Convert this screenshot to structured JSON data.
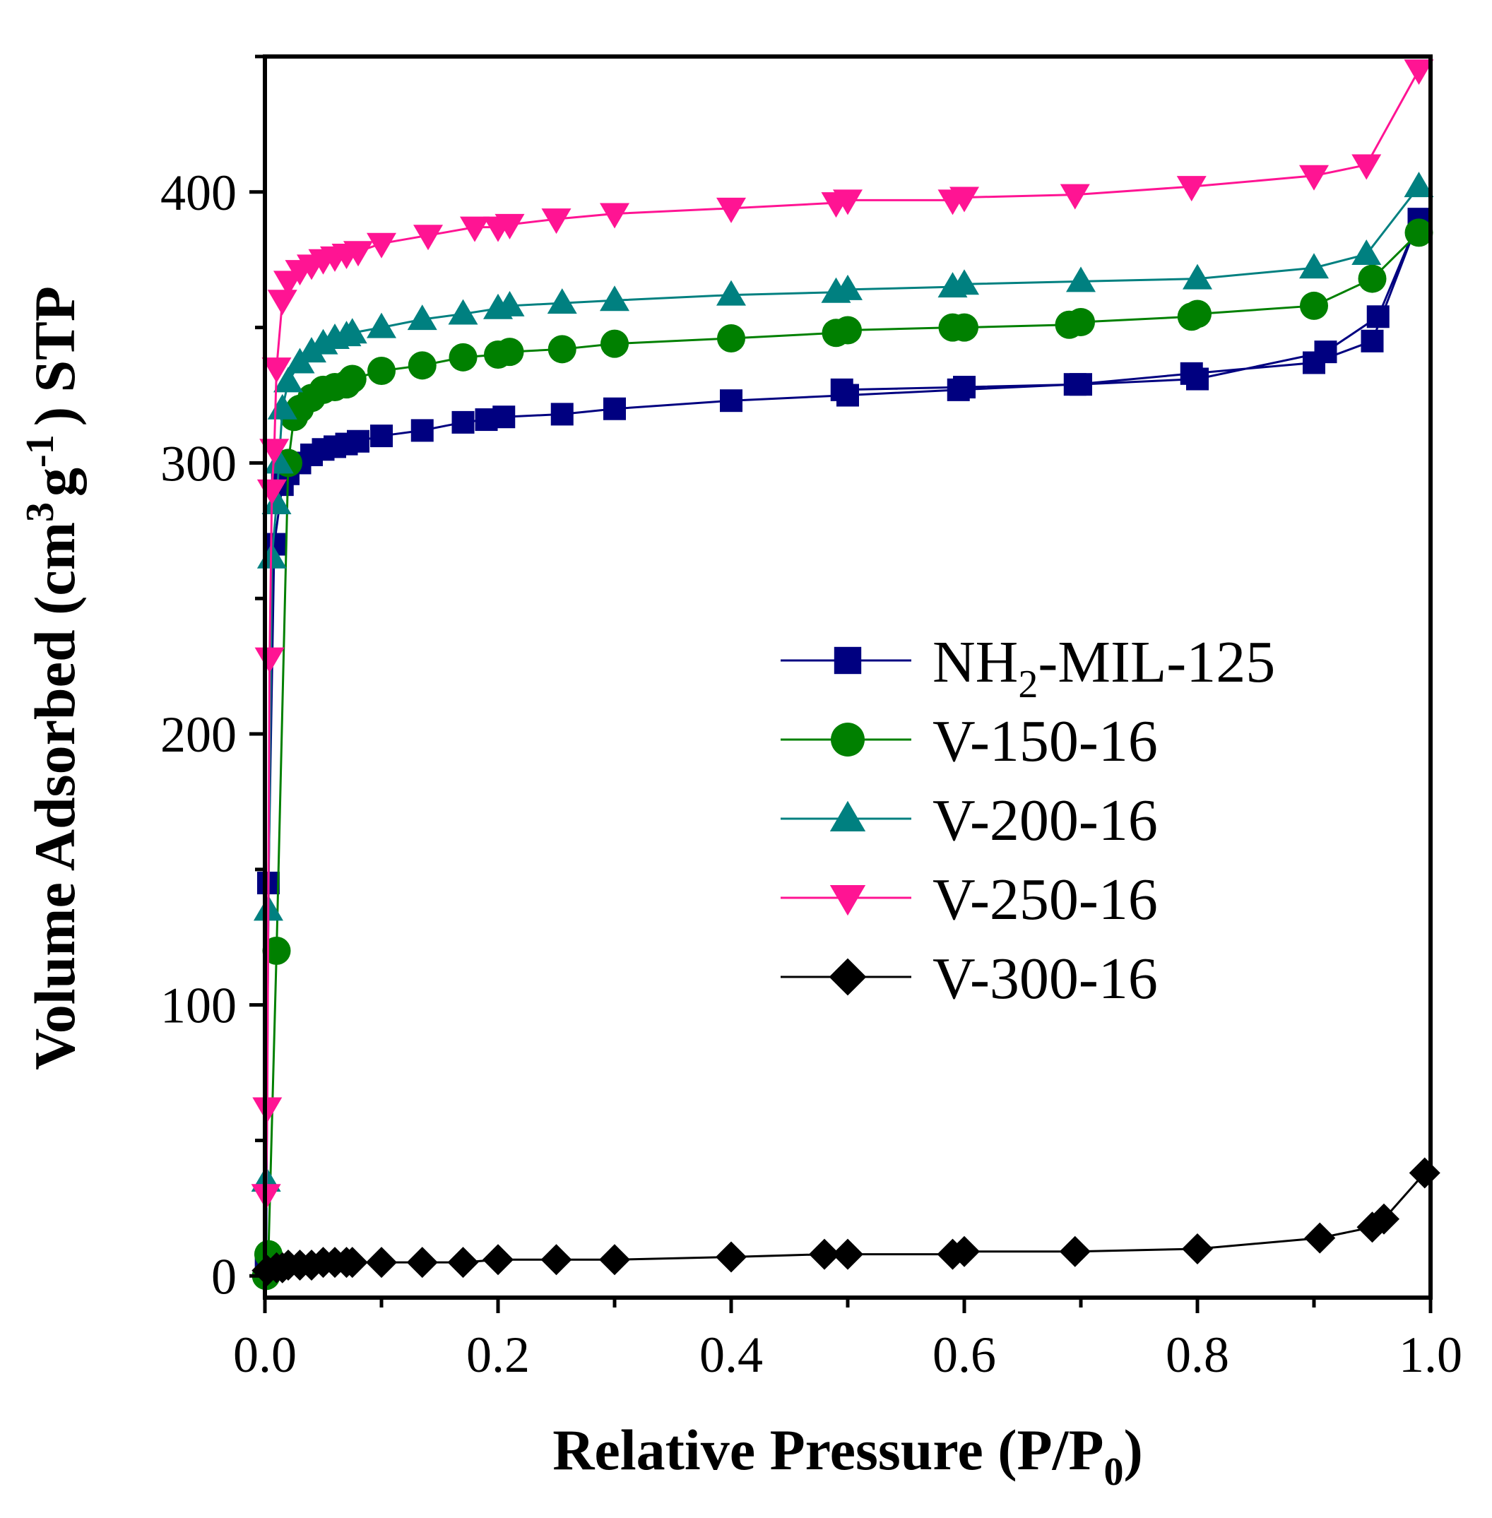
{
  "chart_data": {
    "type": "line",
    "xlabel": "Relative Pressure (P/P",
    "xlabel_sub": "0",
    "xlabel_tail": ")",
    "ylabel": "Volume Adsorbed  (cm",
    "ylabel_sup1": "3",
    "ylabel_mid": "g",
    "ylabel_sup2": "-1",
    "ylabel_tail": ") STP",
    "xlim": [
      0.0,
      1.0
    ],
    "ylim": [
      -8,
      450
    ],
    "x_ticks": [
      0.0,
      0.2,
      0.4,
      0.6,
      0.8,
      1.0
    ],
    "x_tick_labels": [
      "0.0",
      "0.2",
      "0.4",
      "0.6",
      "0.8",
      "1.0"
    ],
    "y_ticks": [
      0,
      100,
      200,
      300,
      400
    ],
    "y_tick_labels": [
      "0",
      "100",
      "200",
      "300",
      "400"
    ],
    "y_minor_ticks": [
      50,
      150,
      250,
      350,
      450
    ],
    "legend_position": "center-right",
    "series": [
      {
        "name": "NH",
        "name_sub": "2",
        "name_tail": "-MIL-125",
        "marker": "square",
        "color": "#000080",
        "x": [
          0.001,
          0.003,
          0.008,
          0.015,
          0.02,
          0.03,
          0.04,
          0.05,
          0.06,
          0.07,
          0.08,
          0.1,
          0.135,
          0.17,
          0.19,
          0.205,
          0.255,
          0.3,
          0.4,
          0.5,
          0.595,
          0.695,
          0.795,
          0.9,
          0.95,
          0.99,
          0.955,
          0.91,
          0.8,
          0.7,
          0.6,
          0.495
        ],
        "y": [
          5,
          145,
          270,
          292,
          296,
          300,
          303,
          305,
          306,
          307,
          308,
          310,
          312,
          315,
          316,
          317,
          318,
          320,
          323,
          325,
          327,
          329,
          333,
          337,
          345,
          390,
          354,
          341,
          331,
          329,
          328,
          327
        ]
      },
      {
        "name": "V-150-16",
        "marker": "circle",
        "color": "#008000",
        "x": [
          0.001,
          0.003,
          0.01,
          0.02,
          0.025,
          0.03,
          0.04,
          0.05,
          0.06,
          0.07,
          0.075,
          0.1,
          0.135,
          0.17,
          0.2,
          0.21,
          0.255,
          0.3,
          0.4,
          0.49,
          0.5,
          0.59,
          0.6,
          0.69,
          0.7,
          0.795,
          0.8,
          0.9,
          0.95,
          0.99
        ],
        "y": [
          0,
          8,
          120,
          300,
          317,
          320,
          324,
          327,
          328,
          329,
          331,
          334,
          336,
          339,
          340,
          341,
          342,
          344,
          346,
          348,
          349,
          350,
          350,
          351,
          352,
          354,
          355,
          358,
          368,
          385
        ]
      },
      {
        "name": "V-200-16",
        "marker": "triangle-up",
        "color": "#008080",
        "x": [
          0.001,
          0.003,
          0.006,
          0.01,
          0.012,
          0.015,
          0.02,
          0.03,
          0.04,
          0.05,
          0.06,
          0.07,
          0.075,
          0.1,
          0.135,
          0.17,
          0.2,
          0.21,
          0.255,
          0.3,
          0.4,
          0.49,
          0.5,
          0.59,
          0.6,
          0.7,
          0.8,
          0.9,
          0.945,
          0.99
        ],
        "y": [
          35,
          135,
          265,
          285,
          300,
          320,
          330,
          337,
          341,
          344,
          346,
          347,
          348,
          350,
          353,
          355,
          357,
          358,
          359,
          360,
          362,
          363,
          364,
          365,
          366,
          367,
          368,
          372,
          377,
          402
        ]
      },
      {
        "name": "V-250-16",
        "marker": "triangle-down",
        "color": "#FF1493",
        "x": [
          0.001,
          0.002,
          0.004,
          0.006,
          0.008,
          0.01,
          0.015,
          0.02,
          0.03,
          0.04,
          0.05,
          0.06,
          0.07,
          0.08,
          0.1,
          0.14,
          0.18,
          0.2,
          0.21,
          0.25,
          0.3,
          0.4,
          0.49,
          0.5,
          0.59,
          0.6,
          0.695,
          0.795,
          0.9,
          0.945,
          0.99
        ],
        "y": [
          30,
          62,
          228,
          290,
          305,
          335,
          360,
          367,
          371,
          373,
          375,
          376,
          377,
          378,
          381,
          384,
          387,
          387,
          388,
          390,
          392,
          394,
          396,
          397,
          397,
          398,
          399,
          402,
          406,
          410,
          445
        ]
      },
      {
        "name": "V-300-16",
        "marker": "diamond",
        "color": "#000000",
        "x": [
          0.002,
          0.01,
          0.015,
          0.02,
          0.03,
          0.04,
          0.05,
          0.06,
          0.07,
          0.075,
          0.1,
          0.135,
          0.17,
          0.2,
          0.25,
          0.3,
          0.4,
          0.48,
          0.5,
          0.59,
          0.6,
          0.695,
          0.8,
          0.905,
          0.95,
          0.96,
          0.995
        ],
        "y": [
          2,
          3,
          3,
          4,
          4,
          4,
          5,
          5,
          5,
          5,
          5,
          5,
          5,
          6,
          6,
          6,
          7,
          8,
          8,
          8,
          9,
          9,
          10,
          14,
          18,
          21,
          38
        ]
      }
    ]
  }
}
